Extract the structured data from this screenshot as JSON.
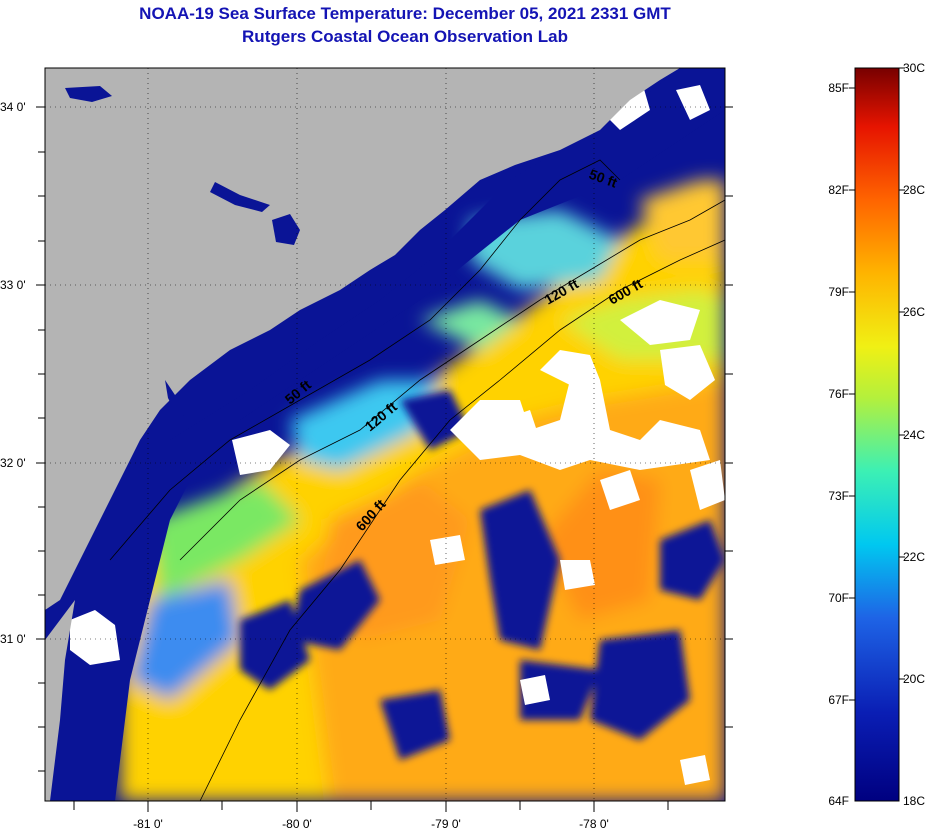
{
  "title": "NOAA-19 Sea Surface Temperature:  December 05, 2021 2331 GMT",
  "subtitle": "Rutgers Coastal Ocean Observation Lab",
  "map": {
    "lon_labels": [
      "-81 0'",
      "-80 0'",
      "-79 0'",
      "-78 0'"
    ],
    "lat_labels": [
      "34 0'",
      "33 0'",
      "32 0'",
      "31 0'"
    ],
    "contours": [
      "50 ft",
      "120 ft",
      "600 ft",
      "50 ft",
      "120 ft",
      "600 ft"
    ]
  },
  "colorbar": {
    "f_labels": [
      "85F",
      "82F",
      "79F",
      "76F",
      "73F",
      "70F",
      "67F",
      "64F"
    ],
    "c_labels": [
      "30C",
      "28C",
      "26C",
      "24C",
      "22C",
      "20C",
      "18C"
    ],
    "c_min": 18,
    "c_max": 30
  },
  "colors": {
    "land": "#b4b4b4",
    "title": "#1414b4",
    "cloud": "#ffffff",
    "deep_blue": "#0a1496"
  }
}
